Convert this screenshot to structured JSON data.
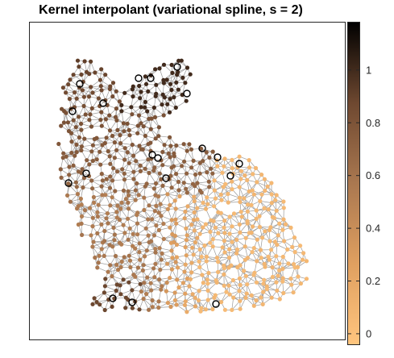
{
  "chart_data": {
    "type": "scatter",
    "title": "Kernel interpolant (variational spline, s = 2)",
    "xlabel": "",
    "ylabel": "",
    "axes_ticks_visible": false,
    "node_colormap": "copper (reversed, light at 0, dark at 1)",
    "edge_color": "#9a9a9a",
    "highlighted_nodes_marker": "black ring",
    "colorbar": {
      "ticks": [
        "0",
        "0.2",
        "0.4",
        "0.6",
        "0.8",
        "1"
      ],
      "tick_values": [
        0,
        0.2,
        0.4,
        0.6,
        0.8,
        1
      ],
      "range": [
        -0.04,
        1.18
      ],
      "low_color": "#ffc57e",
      "high_color": "#000000"
    },
    "value_regions": [
      {
        "region": "ears",
        "approx_value": 1.0
      },
      {
        "region": "head",
        "approx_value": 0.85
      },
      {
        "region": "body-left",
        "approx_value": 0.55
      },
      {
        "region": "body-right",
        "approx_value": 0.05
      },
      {
        "region": "front-foot",
        "approx_value": 0.9
      }
    ]
  }
}
